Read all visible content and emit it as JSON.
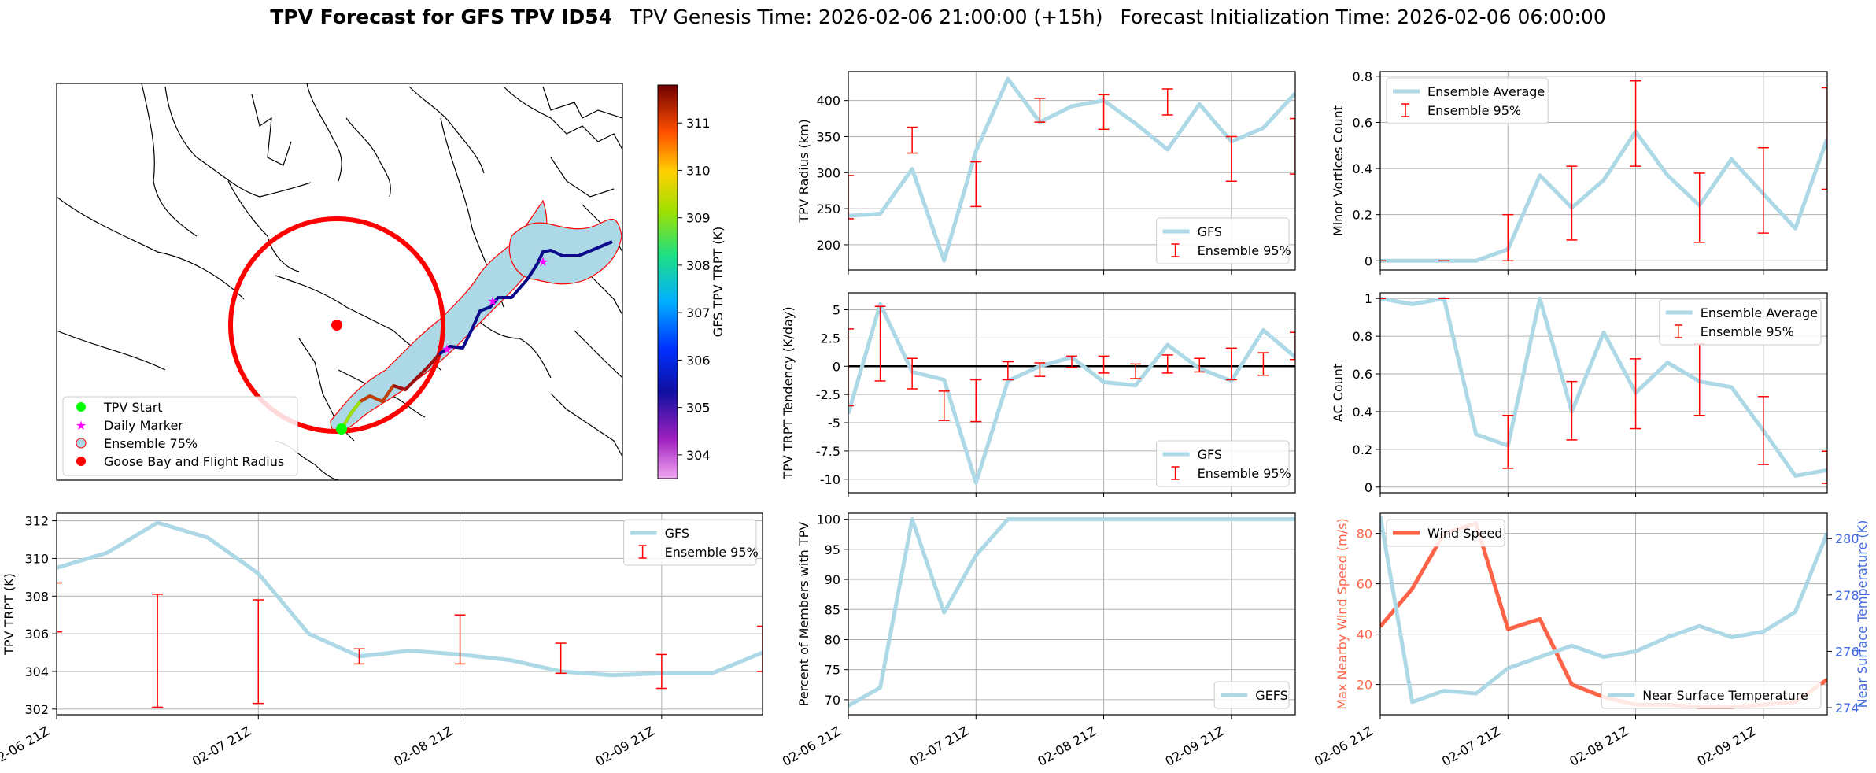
{
  "header": {
    "title_bold": "TPV Forecast for GFS TPV ID54",
    "genesis": "TPV Genesis Time: 2026-02-06 21:00:00 (+15h)",
    "init": "Forecast Initialization Time: 2026-02-06 06:00:00"
  },
  "x_ticks": [
    "02-06 21Z",
    "02-07 21Z",
    "02-08 21Z",
    "02-09 21Z"
  ],
  "colors": {
    "gfs": "#add8e6",
    "ens": "#ff0000",
    "wind": "#ff6347",
    "temp": "#4169e1",
    "ocean": "#add8e6"
  },
  "map": {
    "legend": [
      "TPV Start",
      "Daily Marker",
      "Ensemble 75%",
      "Goose Bay and Flight Radius"
    ],
    "colorbar_label": "GFS TPV TRPT (K)",
    "colorbar_ticks": [
      "304",
      "305",
      "306",
      "307",
      "308",
      "309",
      "310",
      "311"
    ]
  },
  "chart_data": [
    {
      "id": "radius",
      "type": "line",
      "ylabel": "TPV Radius (km)",
      "ylim": [
        165,
        440
      ],
      "yticks": [
        200,
        250,
        300,
        350,
        400
      ],
      "legend": [
        "GFS",
        "Ensemble 95%"
      ],
      "legend_loc": "lower-right",
      "series": [
        {
          "name": "GFS",
          "values": [
            240,
            243,
            305,
            178,
            330,
            430,
            370,
            392,
            400,
            368,
            332,
            395,
            343,
            362,
            410
          ]
        }
      ],
      "errorbars": [
        {
          "t": 0,
          "lo": 236,
          "hi": 296
        },
        {
          "t": 2,
          "lo": 327,
          "hi": 363
        },
        {
          "t": 4,
          "lo": 253,
          "hi": 315
        },
        {
          "t": 6,
          "lo": 370,
          "hi": 403
        },
        {
          "t": 8,
          "lo": 360,
          "hi": 408
        },
        {
          "t": 10,
          "lo": 380,
          "hi": 416
        },
        {
          "t": 12,
          "lo": 288,
          "hi": 350
        },
        {
          "t": 14,
          "lo": 298,
          "hi": 375
        }
      ]
    },
    {
      "id": "minor",
      "type": "line",
      "ylabel": "Minor Vortices Count",
      "ylim": [
        -0.04,
        0.82
      ],
      "yticks": [
        0.0,
        0.2,
        0.4,
        0.6,
        0.8
      ],
      "legend": [
        "Ensemble Average",
        "Ensemble 95%"
      ],
      "legend_loc": "upper-left",
      "series": [
        {
          "name": "Ensemble Average",
          "values": [
            0,
            0,
            0,
            0,
            0.05,
            0.37,
            0.23,
            0.35,
            0.56,
            0.37,
            0.24,
            0.44,
            0.29,
            0.14,
            0.53
          ]
        }
      ],
      "errorbars": [
        {
          "t": 0,
          "lo": 0,
          "hi": 0
        },
        {
          "t": 2,
          "lo": 0,
          "hi": 0
        },
        {
          "t": 4,
          "lo": 0,
          "hi": 0.2
        },
        {
          "t": 6,
          "lo": 0.09,
          "hi": 0.41
        },
        {
          "t": 8,
          "lo": 0.41,
          "hi": 0.78
        },
        {
          "t": 10,
          "lo": 0.08,
          "hi": 0.38
        },
        {
          "t": 12,
          "lo": 0.12,
          "hi": 0.49
        },
        {
          "t": 14,
          "lo": 0.31,
          "hi": 0.75
        }
      ]
    },
    {
      "id": "tendency",
      "type": "line",
      "ylabel": "TPV TRPT Tendency (K/day)",
      "ylim": [
        -11.2,
        6.5
      ],
      "yticks": [
        -10.0,
        -7.5,
        -5.0,
        -2.5,
        0.0,
        2.5,
        5.0
      ],
      "legend": [
        "GFS",
        "Ensemble 95%"
      ],
      "legend_loc": "lower-right",
      "zero_line": true,
      "series": [
        {
          "name": "GFS",
          "values": [
            -4.2,
            5.5,
            -0.5,
            -1.2,
            -10.3,
            -1.3,
            0.0,
            0.8,
            -1.4,
            -1.7,
            1.9,
            -0.2,
            -1.3,
            3.2,
            0.8
          ]
        }
      ],
      "errorbars": [
        {
          "t": 0,
          "lo": -3.5,
          "hi": 3.3
        },
        {
          "t": 1,
          "lo": -1.3,
          "hi": 5.3
        },
        {
          "t": 2,
          "lo": -2.0,
          "hi": 0.7
        },
        {
          "t": 3,
          "lo": -4.8,
          "hi": -2.2
        },
        {
          "t": 4,
          "lo": -4.9,
          "hi": -1.2
        },
        {
          "t": 5,
          "lo": -1.2,
          "hi": 0.4
        },
        {
          "t": 6,
          "lo": -0.9,
          "hi": 0.3
        },
        {
          "t": 7,
          "lo": -0.1,
          "hi": 0.9
        },
        {
          "t": 8,
          "lo": -0.6,
          "hi": 0.9
        },
        {
          "t": 9,
          "lo": -1.1,
          "hi": 0.2
        },
        {
          "t": 10,
          "lo": -0.6,
          "hi": 1.0
        },
        {
          "t": 11,
          "lo": -0.5,
          "hi": 0.7
        },
        {
          "t": 12,
          "lo": -1.2,
          "hi": 1.6
        },
        {
          "t": 13,
          "lo": -0.8,
          "hi": 1.2
        },
        {
          "t": 14,
          "lo": 0.6,
          "hi": 3.0
        }
      ]
    },
    {
      "id": "ac",
      "type": "line",
      "ylabel": "AC Count",
      "ylim": [
        -0.03,
        1.03
      ],
      "yticks": [
        0.0,
        0.2,
        0.4,
        0.6,
        0.8,
        1.0
      ],
      "legend": [
        "Ensemble Average",
        "Ensemble 95%"
      ],
      "legend_loc": "upper-right",
      "series": [
        {
          "name": "Ensemble Average",
          "values": [
            1.0,
            0.97,
            1.0,
            0.28,
            0.22,
            1.0,
            0.4,
            0.82,
            0.5,
            0.66,
            0.56,
            0.53,
            0.3,
            0.06,
            0.09
          ]
        }
      ],
      "errorbars": [
        {
          "t": 0,
          "lo": 1.0,
          "hi": 1.0
        },
        {
          "t": 2,
          "lo": 1.0,
          "hi": 1.0
        },
        {
          "t": 4,
          "lo": 0.1,
          "hi": 0.38
        },
        {
          "t": 6,
          "lo": 0.25,
          "hi": 0.56
        },
        {
          "t": 8,
          "lo": 0.31,
          "hi": 0.68
        },
        {
          "t": 10,
          "lo": 0.38,
          "hi": 0.76
        },
        {
          "t": 12,
          "lo": 0.12,
          "hi": 0.48
        },
        {
          "t": 14,
          "lo": 0.02,
          "hi": 0.19
        }
      ]
    },
    {
      "id": "trpt",
      "type": "line",
      "ylabel": "TPV TRPT (K)",
      "ylim": [
        301.7,
        312.4
      ],
      "yticks": [
        302,
        304,
        306,
        308,
        310,
        312
      ],
      "legend": [
        "GFS",
        "Ensemble 95%"
      ],
      "legend_loc": "upper-right",
      "series": [
        {
          "name": "GFS",
          "values": [
            309.5,
            310.3,
            311.9,
            311.1,
            309.2,
            306.0,
            304.8,
            305.1,
            304.9,
            304.6,
            304.0,
            303.8,
            303.9,
            303.9,
            305.0
          ]
        }
      ],
      "errorbars": [
        {
          "t": 0,
          "lo": 306.1,
          "hi": 308.7
        },
        {
          "t": 2,
          "lo": 302.1,
          "hi": 308.1
        },
        {
          "t": 4,
          "lo": 302.3,
          "hi": 307.8
        },
        {
          "t": 6,
          "lo": 304.4,
          "hi": 305.2
        },
        {
          "t": 8,
          "lo": 304.4,
          "hi": 307.0
        },
        {
          "t": 10,
          "lo": 303.9,
          "hi": 305.5
        },
        {
          "t": 12,
          "lo": 303.1,
          "hi": 304.9
        },
        {
          "t": 14,
          "lo": 304.0,
          "hi": 306.4
        }
      ]
    },
    {
      "id": "percent",
      "type": "line",
      "ylabel": "Percent of Members with TPV",
      "ylim": [
        67.5,
        101
      ],
      "yticks": [
        70,
        75,
        80,
        85,
        90,
        95,
        100
      ],
      "legend": [
        "GEFS"
      ],
      "legend_loc": "lower-right",
      "series": [
        {
          "name": "GEFS",
          "values": [
            69,
            72,
            100,
            84.5,
            94,
            100,
            100,
            100,
            100,
            100,
            100,
            100,
            100,
            100,
            100
          ]
        }
      ]
    },
    {
      "id": "wind_temp",
      "type": "line",
      "ylabel": "Max Nearby Wind Speed (m/s)",
      "ylabel2": "Near Surface Temperature (K)",
      "ylim": [
        8,
        88
      ],
      "yticks": [
        20,
        40,
        60,
        80
      ],
      "ylim2": [
        273.75,
        280.9
      ],
      "yticks2": [
        274,
        276,
        278,
        280
      ],
      "legend": [
        "Wind Speed"
      ],
      "legend2": [
        "Near Surface Temperature"
      ],
      "series": [
        {
          "name": "Wind Speed",
          "axis": "left",
          "values": [
            43,
            58,
            80,
            84,
            42,
            46,
            20,
            15,
            12,
            12,
            11,
            11,
            12,
            13,
            22
          ]
        },
        {
          "name": "Near Surface Temperature",
          "axis": "right",
          "values": [
            280.8,
            274.2,
            274.6,
            274.5,
            275.4,
            275.8,
            276.2,
            275.8,
            276.0,
            276.5,
            276.9,
            276.5,
            276.7,
            277.4,
            280.2
          ]
        }
      ]
    }
  ]
}
